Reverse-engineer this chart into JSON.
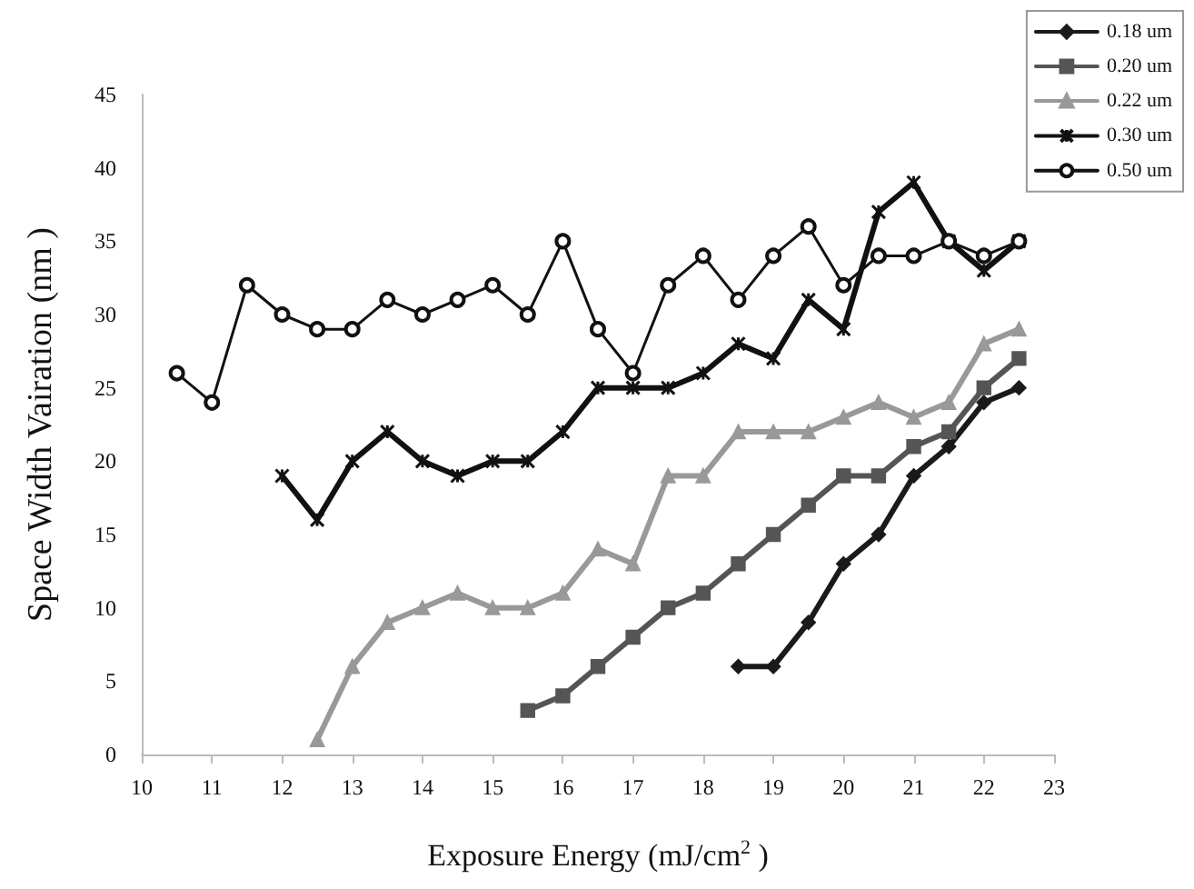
{
  "chart_data": {
    "type": "line",
    "xlabel": "Exposure Energy (mJ/cm$^{2}$ )",
    "ylabel": "Space Width Vairation (nm )",
    "xlim": [
      10,
      23
    ],
    "xticks": [
      10,
      11,
      12,
      13,
      14,
      15,
      16,
      17,
      18,
      19,
      20,
      21,
      22,
      23
    ],
    "ylim": [
      0,
      45
    ],
    "yticks": [
      0,
      5,
      10,
      15,
      20,
      25,
      30,
      35,
      40,
      45
    ],
    "grid": false,
    "legend": "top right",
    "line_style": "solid",
    "series": [
      {
        "name": "0.18 um",
        "color": "#1a1a1a",
        "marker": "diamond",
        "x": [
          18.5,
          19,
          19.5,
          20,
          20.5,
          21,
          21.5,
          22,
          22.5
        ],
        "values": [
          6,
          6,
          9,
          13,
          15,
          19,
          21,
          24,
          25
        ]
      },
      {
        "name": "0.20 um",
        "color": "#555555",
        "marker": "square",
        "x": [
          15.5,
          16,
          16.5,
          17,
          17.5,
          18,
          18.5,
          19,
          19.5,
          20,
          20.5,
          21,
          21.5,
          22,
          22.5
        ],
        "values": [
          3,
          4,
          6,
          8,
          10,
          11,
          13,
          15,
          17,
          19,
          19,
          21,
          22,
          25,
          27
        ]
      },
      {
        "name": "0.22 um",
        "color": "#999999",
        "marker": "triangle",
        "x": [
          12.5,
          13,
          13.5,
          14,
          14.5,
          15,
          15.5,
          16,
          16.5,
          17,
          17.5,
          18,
          18.5,
          19,
          19.5,
          20,
          20.5,
          21,
          21.5,
          22,
          22.5
        ],
        "values": [
          1,
          6,
          9,
          10,
          11,
          10,
          10,
          11,
          14,
          13,
          19,
          19,
          22,
          22,
          22,
          23,
          24,
          23,
          24,
          28,
          29
        ]
      },
      {
        "name": "0.30 um",
        "color": "#111111",
        "marker": "cross",
        "x": [
          12,
          12.5,
          13,
          13.5,
          14,
          14.5,
          15,
          15.5,
          16,
          16.5,
          17,
          17.5,
          18,
          18.5,
          19,
          19.5,
          20,
          20.5,
          21,
          21.5,
          22,
          22.5
        ],
        "values": [
          19,
          16,
          20,
          22,
          20,
          19,
          20,
          20,
          22,
          25,
          25,
          25,
          26,
          28,
          27,
          31,
          29,
          37,
          39,
          35,
          33,
          35
        ]
      },
      {
        "name": "0.50 um",
        "color": "#111111",
        "marker": "circle",
        "x": [
          10.5,
          11,
          11.5,
          12,
          12.5,
          13,
          13.5,
          14,
          14.5,
          15,
          15.5,
          16,
          16.5,
          17,
          17.5,
          18,
          18.5,
          19,
          19.5,
          20,
          20.5,
          21,
          21.5,
          22,
          22.5
        ],
        "values": [
          26,
          24,
          32,
          30,
          29,
          29,
          31,
          30,
          31,
          32,
          30,
          35,
          29,
          26,
          32,
          34,
          31,
          34,
          36,
          32,
          34,
          34,
          35,
          34,
          35
        ]
      }
    ]
  }
}
